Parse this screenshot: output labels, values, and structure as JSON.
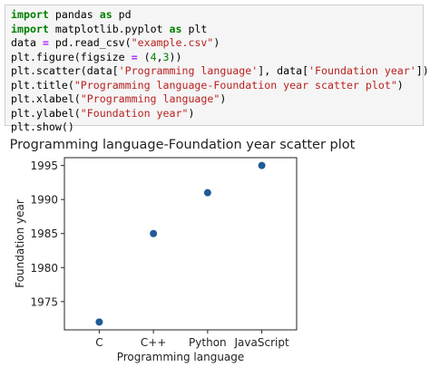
{
  "code_cell": {
    "lines": [
      [
        {
          "t": "import",
          "c": "kw"
        },
        {
          "t": " pandas ",
          "c": "plain"
        },
        {
          "t": "as",
          "c": "kw"
        },
        {
          "t": " pd",
          "c": "plain"
        }
      ],
      [
        {
          "t": "import",
          "c": "kw"
        },
        {
          "t": " matplotlib.pyplot ",
          "c": "plain"
        },
        {
          "t": "as",
          "c": "kw"
        },
        {
          "t": " plt",
          "c": "plain"
        }
      ],
      [
        {
          "t": "data ",
          "c": "plain"
        },
        {
          "t": "=",
          "c": "op"
        },
        {
          "t": " pd.read_csv(",
          "c": "plain"
        },
        {
          "t": "\"example.csv\"",
          "c": "str"
        },
        {
          "t": ")",
          "c": "plain"
        }
      ],
      [
        {
          "t": "plt.figure(figsize ",
          "c": "plain"
        },
        {
          "t": "=",
          "c": "op"
        },
        {
          "t": " (",
          "c": "plain"
        },
        {
          "t": "4",
          "c": "num"
        },
        {
          "t": ",",
          "c": "plain"
        },
        {
          "t": "3",
          "c": "num"
        },
        {
          "t": "))",
          "c": "plain"
        }
      ],
      [
        {
          "t": "plt.scatter(data[",
          "c": "plain"
        },
        {
          "t": "'Programming language'",
          "c": "str"
        },
        {
          "t": "], data[",
          "c": "plain"
        },
        {
          "t": "'Foundation year'",
          "c": "str"
        },
        {
          "t": "])",
          "c": "plain"
        }
      ],
      [
        {
          "t": "plt.title(",
          "c": "plain"
        },
        {
          "t": "\"Programming language-Foundation year scatter plot\"",
          "c": "str"
        },
        {
          "t": ")",
          "c": "plain"
        }
      ],
      [
        {
          "t": "plt.xlabel(",
          "c": "plain"
        },
        {
          "t": "\"Programming language\"",
          "c": "str"
        },
        {
          "t": ")",
          "c": "plain"
        }
      ],
      [
        {
          "t": "plt.ylabel(",
          "c": "plain"
        },
        {
          "t": "\"Foundation year\"",
          "c": "str"
        },
        {
          "t": ")",
          "c": "plain"
        }
      ],
      [
        {
          "t": "plt.show()",
          "c": "plain"
        }
      ]
    ]
  },
  "chart_data": {
    "type": "scatter",
    "title": "Programming language-Foundation year scatter plot",
    "xlabel": "Programming language",
    "ylabel": "Foundation year",
    "categories": [
      "C",
      "C++",
      "Python",
      "JavaScript"
    ],
    "x": [
      "C",
      "C++",
      "Python",
      "JavaScript"
    ],
    "y": [
      1972,
      1985,
      1991,
      1995
    ],
    "yticks": [
      1975,
      1980,
      1985,
      1990,
      1995
    ],
    "ylim": [
      1970.85,
      1996.15
    ],
    "grid": false,
    "marker_color": "#1f5b96"
  }
}
